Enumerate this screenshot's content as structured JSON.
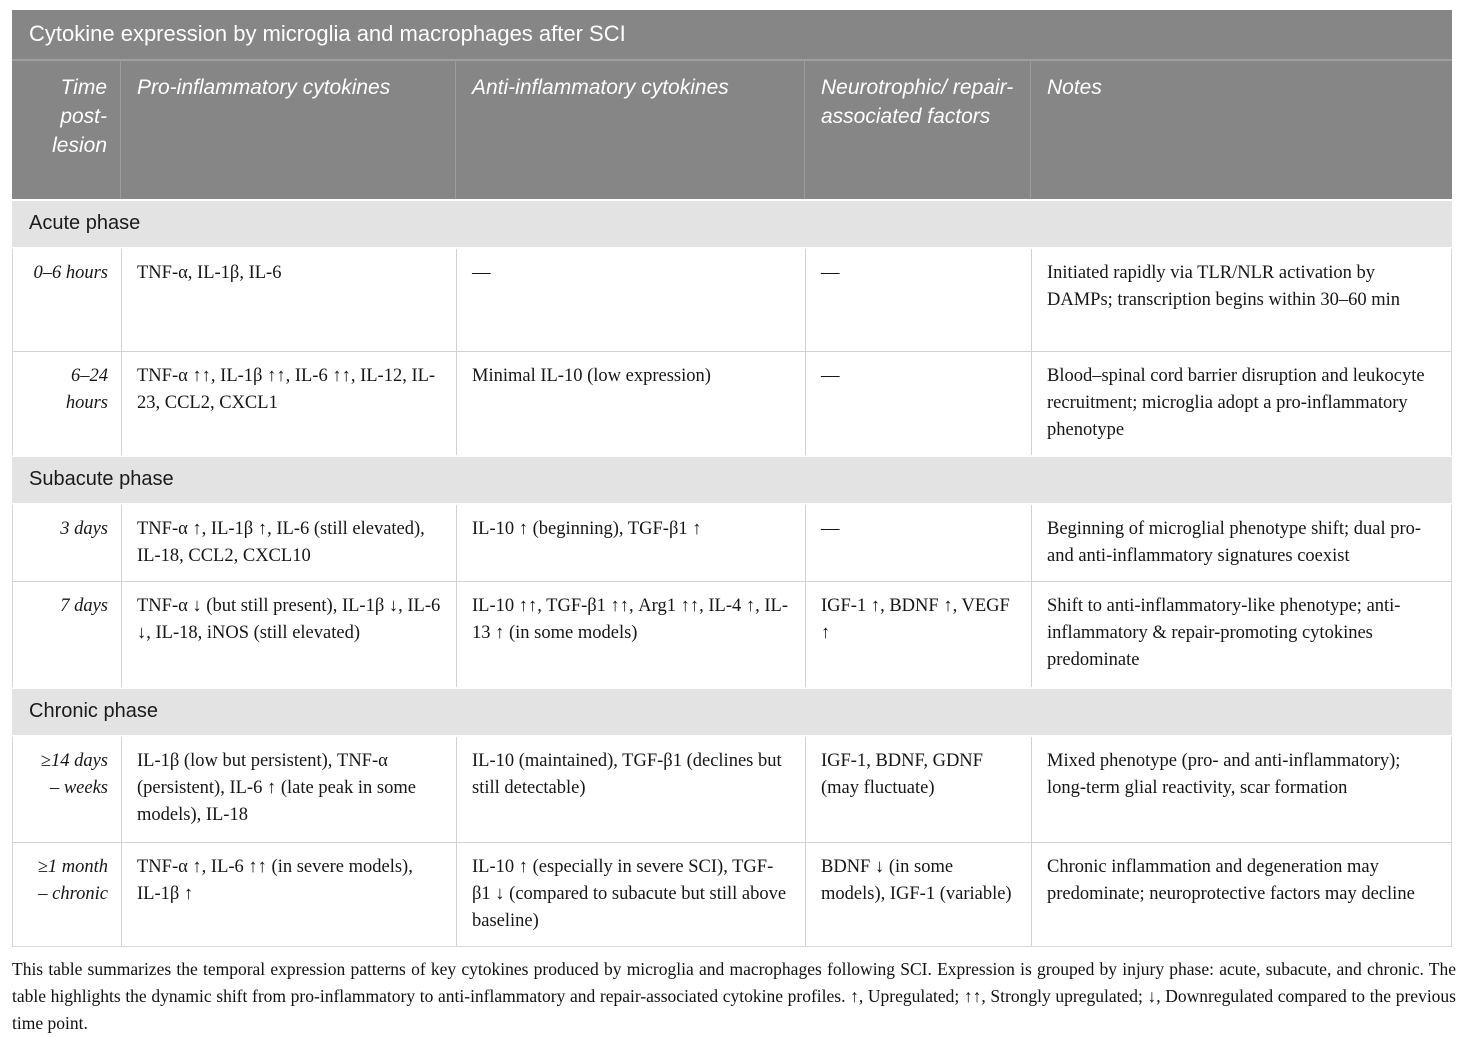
{
  "title": "Cytokine expression by microglia and macrophages after SCI",
  "columns": {
    "time": "Time post-lesion",
    "pro": "Pro-inflammatory cytokines",
    "anti": "Anti-inflammatory cytokines",
    "neuro": "Neurotrophic/ repair-associated factors",
    "notes": "Notes"
  },
  "sections": [
    {
      "label": "Acute phase",
      "rows": [
        {
          "time": "0–6 hours",
          "pro": "TNF-α, IL-1β, IL-6",
          "anti": "—",
          "neuro": "—",
          "notes": "Initiated rapidly via TLR/NLR activation by DAMPs; transcription begins within 30–60 min"
        },
        {
          "time": "6–24 hours",
          "pro": "TNF-α ↑↑, IL-1β ↑↑, IL-6 ↑↑, IL-12, IL-23, CCL2, CXCL1",
          "anti": "Minimal IL-10 (low expression)",
          "neuro": "—",
          "notes": "Blood–spinal cord barrier disruption and leukocyte recruitment; microglia adopt a pro-inflammatory phenotype"
        }
      ]
    },
    {
      "label": "Subacute phase",
      "rows": [
        {
          "time": "3 days",
          "pro": "TNF-α ↑, IL-1β ↑, IL-6 (still elevated), IL-18, CCL2, CXCL10",
          "anti": "IL-10 ↑ (beginning), TGF-β1 ↑",
          "neuro": "—",
          "notes": "Beginning of microglial phenotype shift; dual pro- and anti-inflammatory signatures coexist"
        },
        {
          "time": "7 days",
          "pro": "TNF-α ↓ (but still present), IL-1β ↓, IL-6 ↓, IL-18, iNOS (still elevated)",
          "anti": "IL-10 ↑↑, TGF-β1 ↑↑, Arg1 ↑↑, IL-4 ↑, IL-13 ↑ (in some models)",
          "neuro": "IGF-1 ↑, BDNF ↑, VEGF ↑",
          "notes": "Shift to anti-inflammatory-like phenotype; anti-inflammatory & repair-promoting cytokines predominate"
        }
      ]
    },
    {
      "label": "Chronic phase",
      "rows": [
        {
          "time": "≥14 days – weeks",
          "pro": "IL-1β (low but persistent), TNF-α (persistent), IL-6 ↑ (late peak in some models), IL-18",
          "anti": "IL-10 (maintained), TGF-β1 (declines but still detectable)",
          "neuro": "IGF-1, BDNF, GDNF (may fluctuate)",
          "notes": "Mixed phenotype (pro- and anti-inflammatory); long-term glial reactivity, scar formation"
        },
        {
          "time": "≥1 month – chronic",
          "pro": "TNF-α ↑, IL-6 ↑↑ (in severe models), IL-1β ↑",
          "anti": "IL-10 ↑ (especially in severe SCI), TGF-β1 ↓ (compared to subacute but still above baseline)",
          "neuro": "BDNF ↓ (in some models), IGF-1 (variable)",
          "notes": "Chronic inflammation and degeneration may predominate; neuroprotective factors may decline"
        }
      ]
    }
  ],
  "footnote": "This table summarizes the temporal expression patterns of key cytokines produced by microglia and macrophages following SCI. Expression is grouped by injury phase: acute, subacute, and chronic. The table highlights the dynamic shift from pro-inflammatory to anti-inflammatory and repair-associated cytokine profiles. ↑, Upregulated; ↑↑, Strongly upregulated; ↓, Downregulated compared to the previous time point.",
  "colors": {
    "header_bg": "#868686",
    "header_separator": "#9c9c9c",
    "section_bg": "#e3e3e3",
    "row_border": "#d2d2d2",
    "header_text": "#ffffff",
    "body_text": "#161616"
  }
}
